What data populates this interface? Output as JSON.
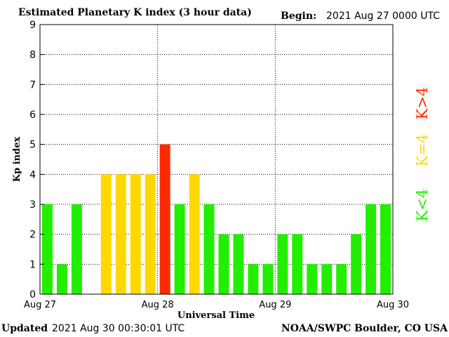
{
  "header": {
    "title": "Estimated Planetary K index (3 hour data)",
    "begin_label": "Begin:",
    "begin_value": "2021 Aug 27 0000 UTC"
  },
  "footer": {
    "updated_label": "Updated",
    "updated_value": "2021 Aug 30 00:30:01 UTC",
    "credit": "NOAA/SWPC Boulder, CO USA"
  },
  "legend": [
    {
      "label": "K<4",
      "color": "#22ee00"
    },
    {
      "label": "K=4",
      "color": "#ffd800"
    },
    {
      "label": "K>4",
      "color": "#ff2a00"
    }
  ],
  "chart_data": {
    "type": "bar",
    "title": "Estimated Planetary K index (3 hour data)",
    "xlabel": "Universal Time",
    "ylabel": "Kp index",
    "ylim": [
      0,
      9
    ],
    "yticks": [
      0,
      1,
      2,
      3,
      4,
      5,
      6,
      7,
      8,
      9
    ],
    "xtick_labels": [
      "Aug 27",
      "Aug 28",
      "Aug 29",
      "Aug 30"
    ],
    "bars_per_day": 8,
    "grid": true,
    "values": [
      3,
      1,
      3,
      null,
      4,
      4,
      4,
      4,
      5,
      3,
      4,
      3,
      2,
      2,
      1,
      1,
      2,
      2,
      1,
      1,
      1,
      2,
      3,
      3
    ],
    "colors": {
      "below": "#22ee00",
      "equal": "#ffd800",
      "above": "#ff2a00"
    }
  }
}
